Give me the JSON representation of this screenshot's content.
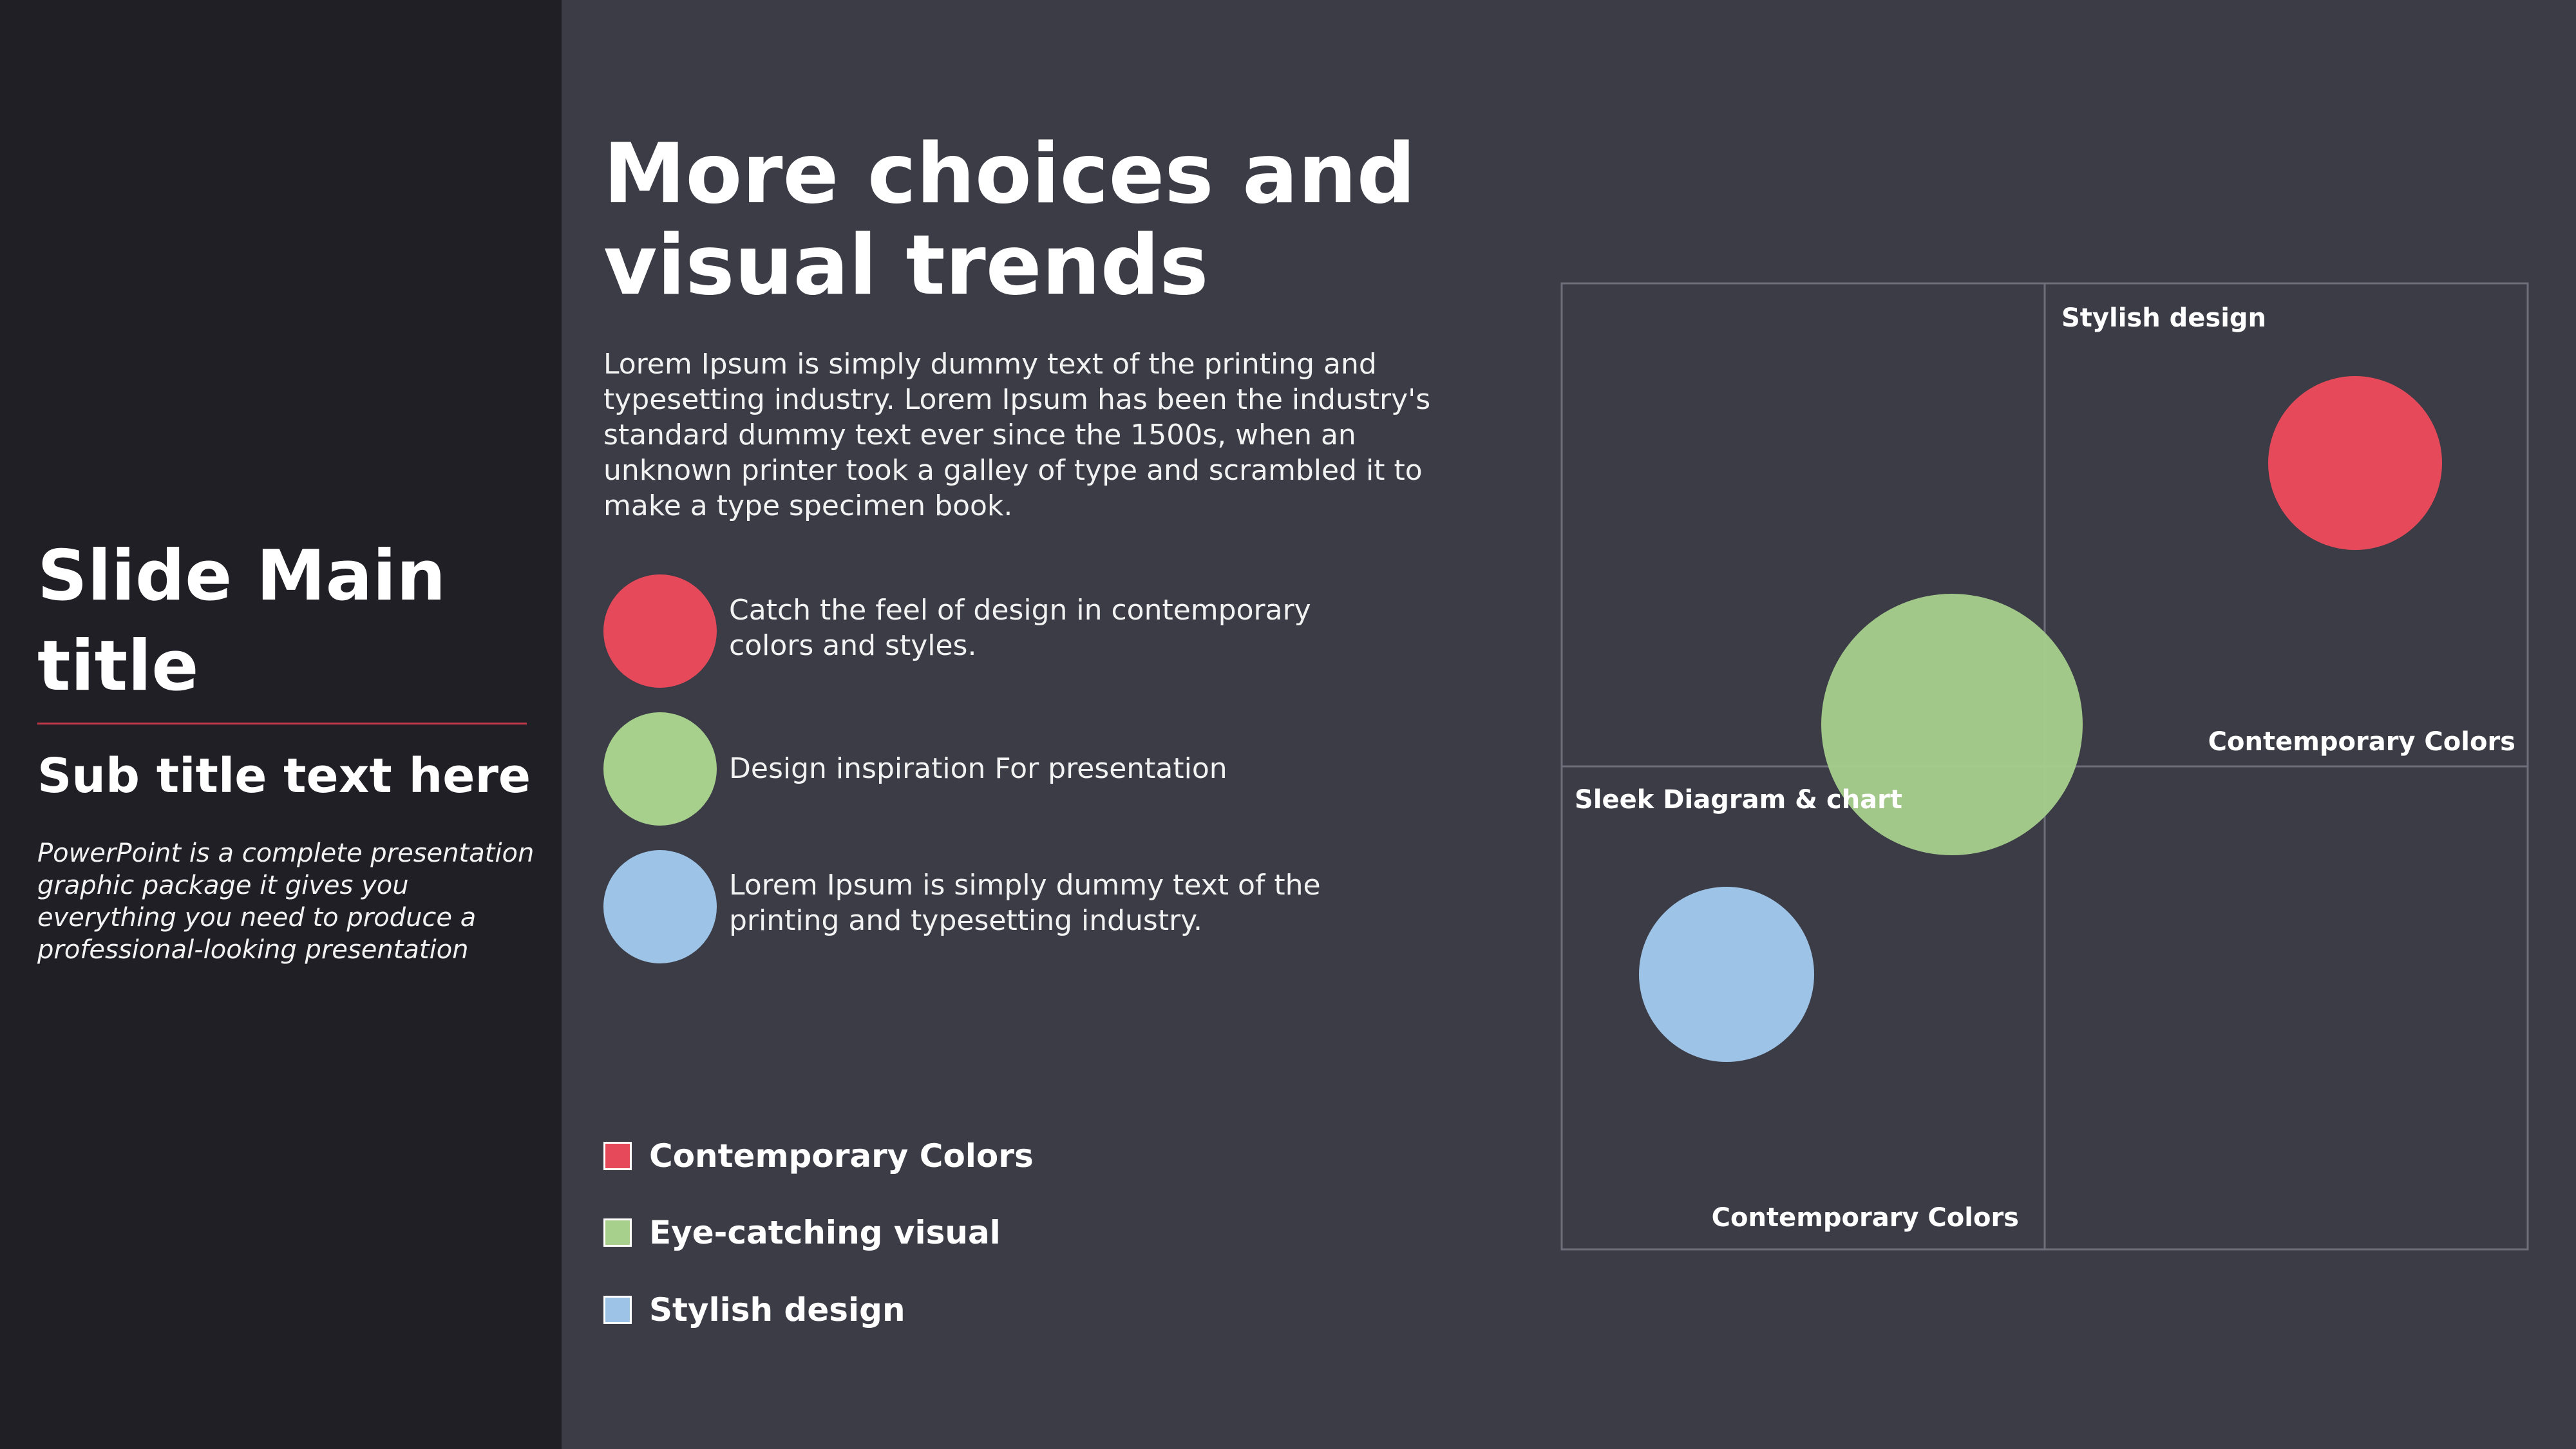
{
  "sidebar": {
    "title": "Slide Main title",
    "subtitle": "Sub title text here",
    "description": "PowerPoint is a complete presentation graphic package it gives you everything you need to produce a professional-looking presentation"
  },
  "main": {
    "heading": "More choices and visual trends",
    "body": "Lorem Ipsum is simply dummy text of the printing and typesetting industry. Lorem Ipsum has been the industry's standard dummy text ever since the 1500s, when an unknown printer took a galley of type and scrambled it to make a type specimen book."
  },
  "bullets": [
    {
      "text": "Catch the feel of design in contemporary colors and styles.",
      "color": "#e64a5a"
    },
    {
      "text": "Design inspiration For presentation",
      "color": "#a6d08c"
    },
    {
      "text": "Lorem Ipsum is simply dummy text of the printing and typesetting industry.",
      "color": "#9dc3e6"
    }
  ],
  "legend": [
    {
      "label": "Contemporary Colors",
      "color": "#e64a5a"
    },
    {
      "label": "Eye-catching visual",
      "color": "#a6d08c"
    },
    {
      "label": "Stylish design",
      "color": "#9dc3e6"
    }
  ],
  "diagram": {
    "labels": {
      "top_right_top": "Stylish design",
      "top_right_bottom": "Contemporary Colors",
      "bottom_left_top": "Sleek Diagram & chart",
      "bottom_left_bottom": "Contemporary Colors"
    },
    "bubbles": [
      {
        "series": "Contemporary Colors",
        "color": "#e64a5a"
      },
      {
        "series": "Eye-catching visual",
        "color": "#a6d08c"
      },
      {
        "series": "Stylish design",
        "color": "#9dc3e6"
      }
    ]
  }
}
